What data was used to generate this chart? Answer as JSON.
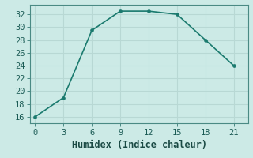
{
  "x": [
    0,
    3,
    6,
    9,
    12,
    15,
    18,
    21
  ],
  "y": [
    16,
    19,
    29.5,
    32.5,
    32.5,
    32,
    28,
    24
  ],
  "line_color": "#1a7a6e",
  "marker": "o",
  "marker_size": 2.5,
  "line_width": 1.2,
  "xlabel": "Humidex (Indice chaleur)",
  "xlim": [
    -0.5,
    22.5
  ],
  "ylim": [
    15,
    33.5
  ],
  "xticks": [
    0,
    3,
    6,
    9,
    12,
    15,
    18,
    21
  ],
  "yticks": [
    16,
    18,
    20,
    22,
    24,
    26,
    28,
    30,
    32
  ],
  "bg_color": "#cceae6",
  "grid_color": "#b8d8d4",
  "tick_label_fontsize": 7.5,
  "xlabel_fontsize": 8.5
}
